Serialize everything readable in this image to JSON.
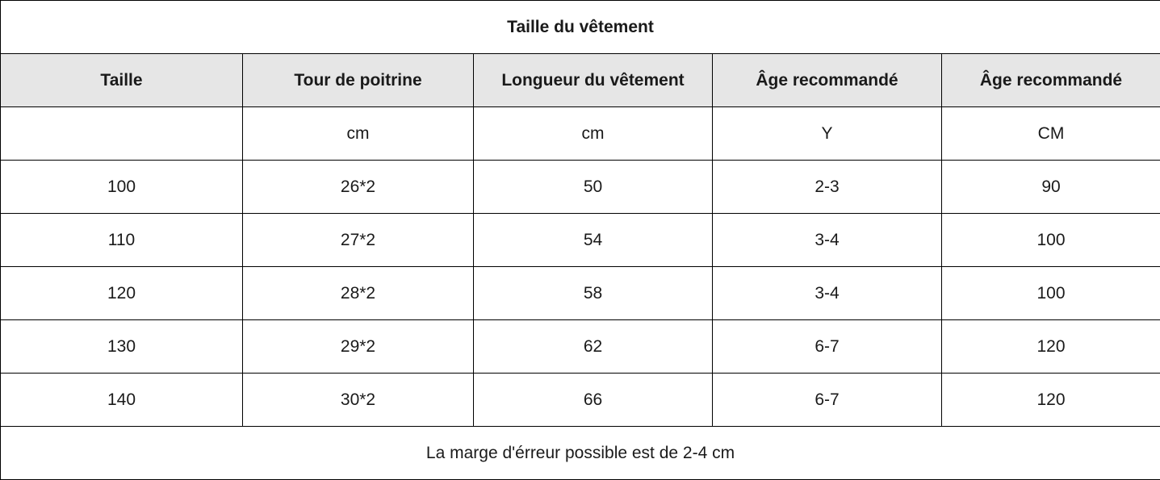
{
  "table": {
    "title": "Taille du vêtement",
    "headers": [
      "Taille",
      "Tour de poitrine",
      "Longueur du vêtement",
      "Âge recommandé",
      "Âge recommandé"
    ],
    "units": [
      "",
      "cm",
      "cm",
      "Y",
      "CM"
    ],
    "rows": [
      [
        "100",
        "26*2",
        "50",
        "2-3",
        "90"
      ],
      [
        "110",
        "27*2",
        "54",
        "3-4",
        "100"
      ],
      [
        "120",
        "28*2",
        "58",
        "3-4",
        "100"
      ],
      [
        "130",
        "29*2",
        "62",
        "6-7",
        "120"
      ],
      [
        "140",
        "30*2",
        "66",
        "6-7",
        "120"
      ]
    ],
    "footer": "La marge d'érreur possible est de 2-4 cm"
  }
}
